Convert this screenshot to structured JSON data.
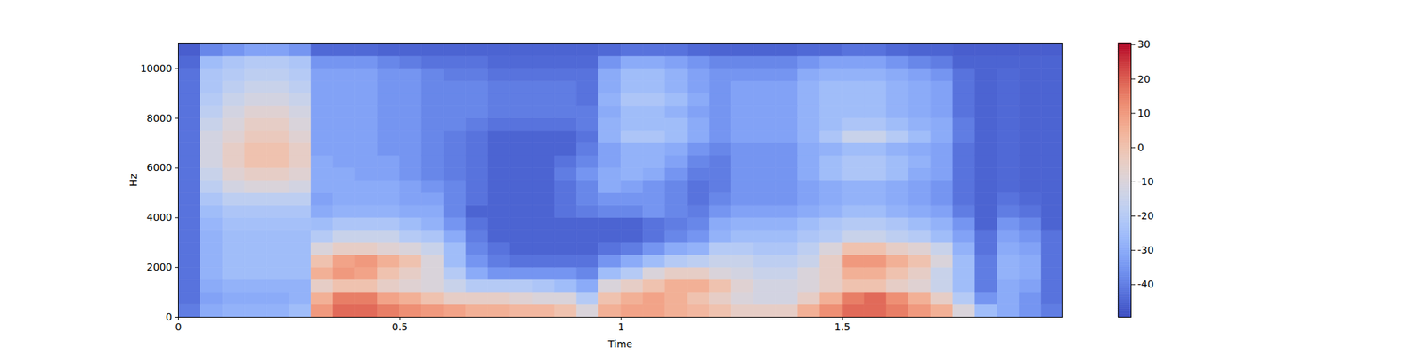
{
  "chart_data": {
    "type": "heatmap",
    "x_label": "Time",
    "y_label": "Hz",
    "xlim": [
      0,
      1.996
    ],
    "ylim": [
      0,
      11025
    ],
    "xticks": [
      0,
      0.5,
      1,
      1.5
    ],
    "yticks": [
      0,
      2000,
      4000,
      6000,
      8000,
      10000
    ],
    "x": [
      0,
      0.05,
      0.1,
      0.15,
      0.2,
      0.25,
      0.3,
      0.35,
      0.4,
      0.45,
      0.5,
      0.55,
      0.6,
      0.65,
      0.7,
      0.75,
      0.8,
      0.85,
      0.9,
      0.95,
      1,
      1.05,
      1.1,
      1.15,
      1.2,
      1.25,
      1.3,
      1.35,
      1.4,
      1.45,
      1.5,
      1.55,
      1.6,
      1.65,
      1.7,
      1.75,
      1.8,
      1.85,
      1.9,
      1.95,
      2
    ],
    "y": [
      0,
      500,
      1000,
      1500,
      2000,
      2500,
      3000,
      3500,
      4000,
      4500,
      5000,
      5500,
      6000,
      6500,
      7000,
      7500,
      8000,
      8500,
      9000,
      9500,
      10000,
      10500,
      11025
    ],
    "z": [
      [
        -40,
        -30,
        -28,
        -28,
        -28,
        -25,
        10,
        18,
        18,
        15,
        12,
        10,
        8,
        5,
        5,
        3,
        3,
        0,
        -10,
        5,
        8,
        8,
        5,
        3,
        0,
        -5,
        -5,
        -5,
        5,
        12,
        18,
        18,
        15,
        10,
        5,
        -10,
        -25,
        -30,
        -35,
        -40
      ],
      [
        -42,
        -32,
        -30,
        -30,
        -30,
        -28,
        5,
        15,
        15,
        8,
        5,
        0,
        -5,
        -5,
        -5,
        -8,
        -10,
        -10,
        -20,
        0,
        5,
        8,
        5,
        0,
        -5,
        -10,
        -12,
        -12,
        -5,
        5,
        15,
        18,
        12,
        5,
        -5,
        -20,
        -35,
        -30,
        -35,
        -42
      ],
      [
        -42,
        -30,
        -28,
        -28,
        -28,
        -28,
        -5,
        0,
        0,
        -5,
        -8,
        -10,
        -15,
        -20,
        -20,
        -20,
        -22,
        -25,
        -30,
        -10,
        -5,
        0,
        5,
        5,
        0,
        -8,
        -12,
        -12,
        -10,
        -5,
        0,
        0,
        -5,
        -8,
        -15,
        -25,
        -40,
        -30,
        -32,
        -42
      ],
      [
        -42,
        -28,
        -25,
        -25,
        -25,
        -25,
        5,
        10,
        8,
        0,
        -5,
        -10,
        -20,
        -30,
        -35,
        -35,
        -35,
        -35,
        -38,
        -25,
        -20,
        -10,
        -5,
        -5,
        -10,
        -12,
        -15,
        -15,
        -10,
        -5,
        5,
        5,
        0,
        -5,
        -15,
        -25,
        -40,
        -28,
        -30,
        -42
      ],
      [
        -42,
        -28,
        -25,
        -25,
        -25,
        -25,
        0,
        8,
        10,
        5,
        0,
        -10,
        -25,
        -35,
        -40,
        -42,
        -42,
        -42,
        -42,
        -35,
        -30,
        -25,
        -20,
        -18,
        -15,
        -15,
        -18,
        -18,
        -15,
        -5,
        10,
        10,
        5,
        0,
        -10,
        -25,
        -40,
        -28,
        -30,
        -42
      ],
      [
        -42,
        -28,
        -25,
        -25,
        -25,
        -25,
        -10,
        -5,
        -5,
        -8,
        -10,
        -15,
        -25,
        -38,
        -42,
        -45,
        -45,
        -45,
        -45,
        -42,
        -40,
        -35,
        -30,
        -28,
        -20,
        -20,
        -22,
        -22,
        -18,
        -10,
        0,
        0,
        -5,
        -8,
        -15,
        -28,
        -42,
        -30,
        -32,
        -42
      ],
      [
        -42,
        -28,
        -25,
        -25,
        -25,
        -25,
        -20,
        -15,
        -15,
        -15,
        -20,
        -22,
        -30,
        -40,
        -45,
        -45,
        -45,
        -45,
        -45,
        -45,
        -45,
        -42,
        -38,
        -35,
        -28,
        -25,
        -25,
        -25,
        -22,
        -20,
        -15,
        -15,
        -18,
        -20,
        -25,
        -32,
        -42,
        -32,
        -35,
        -42
      ],
      [
        -42,
        -27,
        -24,
        -24,
        -24,
        -24,
        -25,
        -22,
        -22,
        -22,
        -25,
        -28,
        -35,
        -42,
        -45,
        -45,
        -45,
        -45,
        -45,
        -45,
        -45,
        -42,
        -40,
        -38,
        -30,
        -28,
        -28,
        -28,
        -25,
        -22,
        -20,
        -20,
        -22,
        -25,
        -28,
        -35,
        -45,
        -35,
        -38,
        -45
      ],
      [
        -42,
        -25,
        -22,
        -22,
        -22,
        -22,
        -30,
        -28,
        -28,
        -28,
        -30,
        -30,
        -38,
        -45,
        -45,
        -45,
        -45,
        -42,
        -40,
        -38,
        -38,
        -35,
        -38,
        -40,
        -35,
        -32,
        -32,
        -32,
        -30,
        -28,
        -25,
        -25,
        -28,
        -30,
        -32,
        -40,
        -45,
        -40,
        -42,
        -45
      ],
      [
        -42,
        -22,
        -18,
        -18,
        -18,
        -18,
        -32,
        -30,
        -30,
        -30,
        -32,
        -32,
        -38,
        -42,
        -45,
        -45,
        -45,
        -42,
        -38,
        -35,
        -35,
        -35,
        -38,
        -42,
        -38,
        -35,
        -35,
        -35,
        -32,
        -30,
        -28,
        -28,
        -30,
        -32,
        -35,
        -42,
        -45,
        -42,
        -44,
        -45
      ],
      [
        -42,
        -18,
        -12,
        -10,
        -10,
        -12,
        -30,
        -30,
        -30,
        -30,
        -32,
        -35,
        -38,
        -42,
        -45,
        -45,
        -45,
        -42,
        -38,
        -30,
        -32,
        -35,
        -38,
        -42,
        -40,
        -35,
        -35,
        -35,
        -32,
        -30,
        -28,
        -28,
        -30,
        -32,
        -35,
        -42,
        -45,
        -44,
        -45,
        -45
      ],
      [
        -42,
        -15,
        -8,
        -5,
        -5,
        -8,
        -30,
        -30,
        -32,
        -32,
        -35,
        -38,
        -40,
        -42,
        -45,
        -45,
        -45,
        -40,
        -35,
        -30,
        -28,
        -30,
        -35,
        -40,
        -40,
        -35,
        -35,
        -35,
        -30,
        -25,
        -22,
        -22,
        -25,
        -30,
        -32,
        -42,
        -45,
        -44,
        -45,
        -45
      ],
      [
        -42,
        -12,
        -5,
        0,
        0,
        -5,
        -30,
        -32,
        -32,
        -32,
        -35,
        -38,
        -40,
        -42,
        -45,
        -45,
        -45,
        -42,
        -38,
        -32,
        -28,
        -28,
        -32,
        -38,
        -40,
        -35,
        -35,
        -35,
        -30,
        -25,
        -22,
        -22,
        -25,
        -28,
        -32,
        -42,
        -45,
        -44,
        -45,
        -45
      ],
      [
        -42,
        -12,
        -5,
        0,
        0,
        -5,
        -32,
        -32,
        -32,
        -35,
        -35,
        -38,
        -40,
        -42,
        -45,
        -45,
        -45,
        -45,
        -40,
        -32,
        -28,
        -28,
        -30,
        -35,
        -38,
        -35,
        -35,
        -35,
        -30,
        -28,
        -25,
        -25,
        -28,
        -30,
        -32,
        -42,
        -45,
        -44,
        -45,
        -45
      ],
      [
        -42,
        -12,
        -8,
        -3,
        -3,
        -8,
        -32,
        -32,
        -32,
        -35,
        -35,
        -38,
        -40,
        -42,
        -45,
        -45,
        -45,
        -45,
        -42,
        -28,
        -22,
        -22,
        -25,
        -30,
        -35,
        -32,
        -32,
        -32,
        -28,
        -22,
        -15,
        -15,
        -20,
        -25,
        -30,
        -40,
        -45,
        -44,
        -45,
        -45
      ],
      [
        -42,
        -15,
        -10,
        -5,
        -5,
        -10,
        -32,
        -32,
        -32,
        -35,
        -35,
        -38,
        -38,
        -40,
        -42,
        -42,
        -42,
        -42,
        -40,
        -28,
        -25,
        -25,
        -25,
        -30,
        -35,
        -32,
        -32,
        -32,
        -28,
        -25,
        -22,
        -22,
        -25,
        -28,
        -30,
        -40,
        -45,
        -44,
        -45,
        -45
      ],
      [
        -42,
        -18,
        -12,
        -8,
        -8,
        -12,
        -32,
        -32,
        -32,
        -35,
        -35,
        -38,
        -38,
        -38,
        -40,
        -40,
        -40,
        -40,
        -40,
        -30,
        -25,
        -25,
        -28,
        -32,
        -35,
        -32,
        -32,
        -32,
        -28,
        -25,
        -25,
        -25,
        -28,
        -30,
        -32,
        -42,
        -45,
        -44,
        -45,
        -45
      ],
      [
        -42,
        -20,
        -15,
        -12,
        -12,
        -15,
        -32,
        -32,
        -32,
        -35,
        -35,
        -38,
        -38,
        -38,
        -40,
        -40,
        -40,
        -40,
        -42,
        -28,
        -22,
        -22,
        -25,
        -30,
        -35,
        -32,
        -32,
        -32,
        -28,
        -25,
        -25,
        -25,
        -28,
        -30,
        -32,
        -42,
        -45,
        -44,
        -45,
        -45
      ],
      [
        -42,
        -22,
        -18,
        -15,
        -15,
        -18,
        -32,
        -32,
        -32,
        -35,
        -35,
        -38,
        -38,
        -38,
        -40,
        -40,
        -40,
        -40,
        -42,
        -30,
        -25,
        -25,
        -28,
        -32,
        -35,
        -32,
        -32,
        -32,
        -28,
        -25,
        -25,
        -25,
        -28,
        -30,
        -32,
        -42,
        -45,
        -44,
        -45,
        -45
      ],
      [
        -42,
        -22,
        -20,
        -18,
        -18,
        -20,
        -32,
        -32,
        -32,
        -35,
        -35,
        -38,
        -40,
        -40,
        -42,
        -42,
        -42,
        -42,
        -42,
        -30,
        -25,
        -25,
        -28,
        -32,
        -35,
        -35,
        -35,
        -35,
        -30,
        -28,
        -28,
        -28,
        -30,
        -32,
        -35,
        -42,
        -45,
        -44,
        -45,
        -45
      ],
      [
        -44,
        -25,
        -22,
        -20,
        -20,
        -22,
        -35,
        -35,
        -35,
        -38,
        -40,
        -42,
        -42,
        -42,
        -44,
        -44,
        -44,
        -44,
        -44,
        -35,
        -30,
        -30,
        -32,
        -35,
        -38,
        -38,
        -38,
        -38,
        -35,
        -32,
        -32,
        -32,
        -35,
        -38,
        -40,
        -45,
        -45,
        -45,
        -45,
        -45
      ],
      [
        -46,
        -38,
        -35,
        -32,
        -32,
        -35,
        -44,
        -44,
        -44,
        -45,
        -45,
        -45,
        -45,
        -45,
        -45,
        -45,
        -45,
        -45,
        -45,
        -44,
        -42,
        -42,
        -42,
        -44,
        -45,
        -45,
        -45,
        -45,
        -44,
        -44,
        -42,
        -42,
        -44,
        -45,
        -45,
        -46,
        -46,
        -46,
        -46,
        -46
      ]
    ],
    "colorbar": {
      "range": [
        -49.5,
        30.5
      ],
      "ticks": [
        -40,
        -30,
        -20,
        -10,
        0,
        10,
        20,
        30
      ]
    }
  }
}
